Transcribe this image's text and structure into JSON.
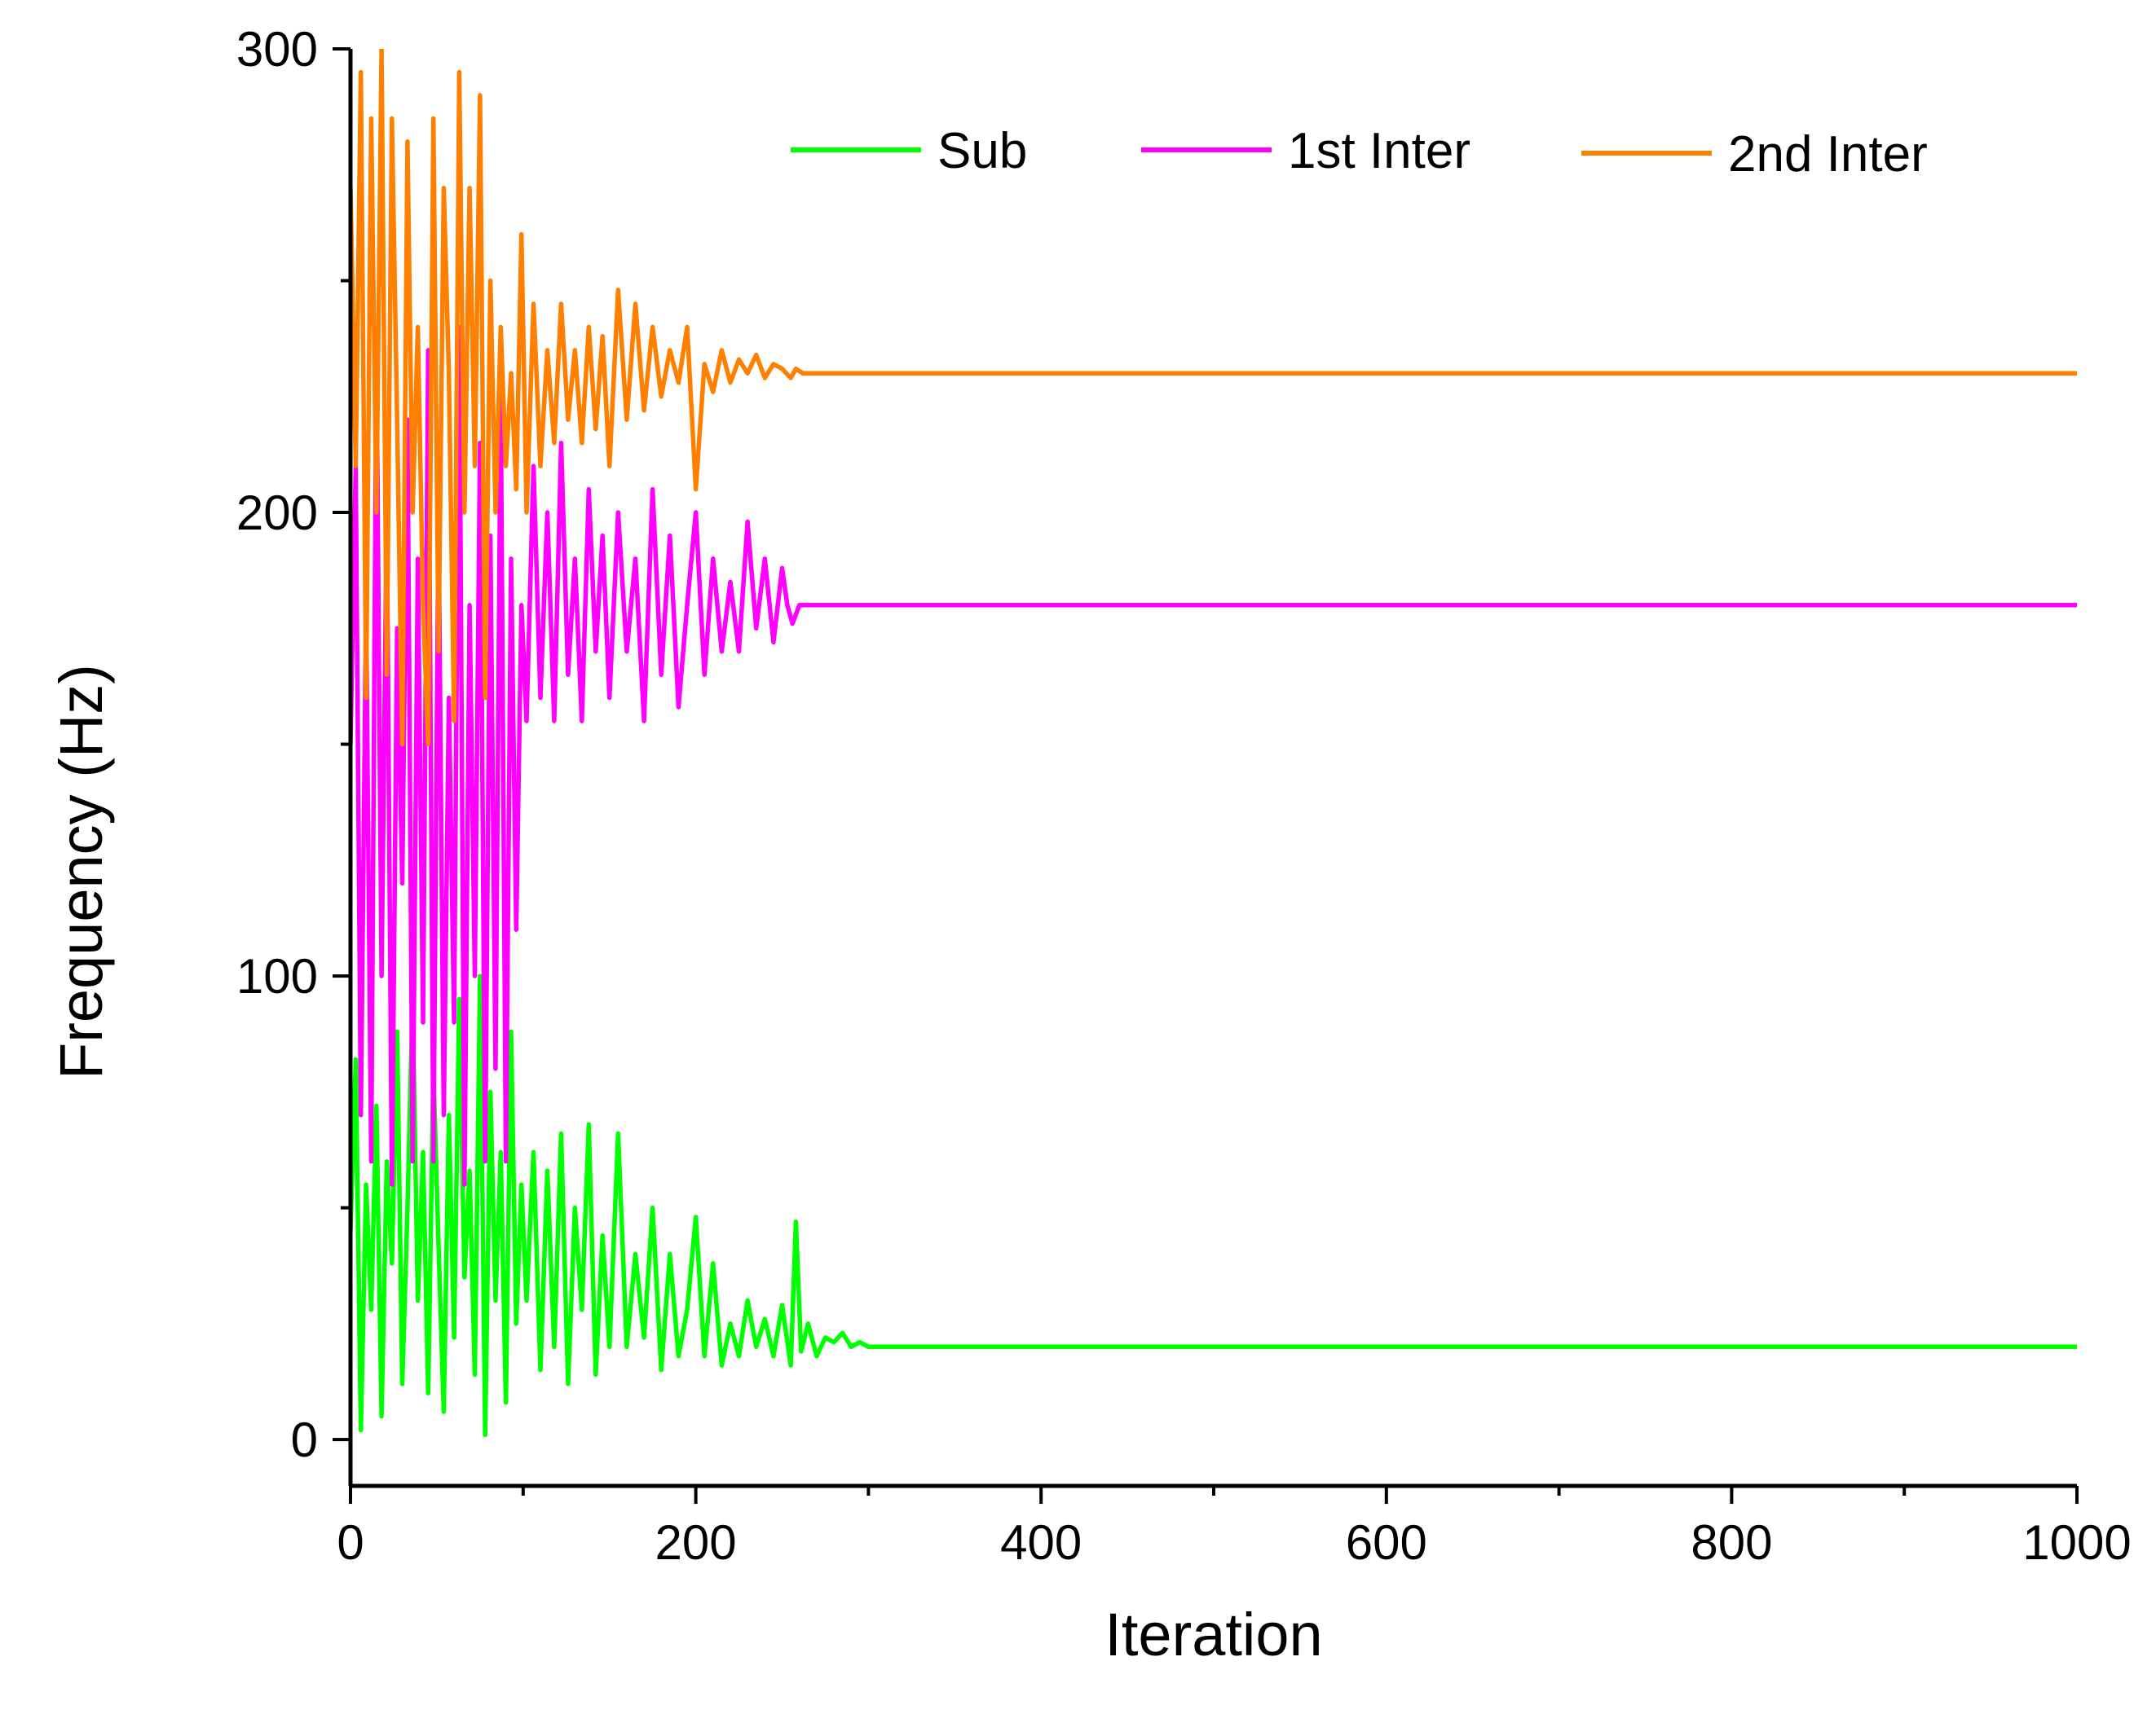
{
  "chart_data": {
    "type": "line",
    "xlabel": "Iteration",
    "ylabel": "Frequency (Hz)",
    "xlim": [
      0,
      1000
    ],
    "ylim": [
      -10,
      300
    ],
    "x_ticks": [
      0,
      200,
      400,
      600,
      800,
      1000
    ],
    "x_tick_labels": [
      "0",
      "200",
      "400",
      "600",
      "800",
      "1000"
    ],
    "y_ticks": [
      0,
      100,
      200,
      300
    ],
    "y_tick_labels": [
      "0",
      "100",
      "200",
      "300"
    ],
    "x_minor_ticks": [
      100,
      300,
      500,
      700,
      900
    ],
    "y_minor_ticks": [
      50,
      150,
      250
    ],
    "grid": false,
    "legend_position": "top",
    "series": [
      {
        "name": "Sub",
        "color": "#00ff00",
        "x": [
          0,
          3,
          6,
          9,
          12,
          15,
          18,
          21,
          24,
          27,
          30,
          33,
          36,
          39,
          42,
          45,
          48,
          51,
          54,
          57,
          60,
          63,
          66,
          69,
          72,
          75,
          78,
          81,
          84,
          87,
          90,
          93,
          96,
          99,
          102,
          106,
          110,
          114,
          118,
          122,
          126,
          130,
          134,
          138,
          142,
          146,
          150,
          155,
          160,
          165,
          170,
          175,
          180,
          185,
          190,
          195,
          200,
          205,
          210,
          215,
          220,
          225,
          230,
          235,
          240,
          245,
          250,
          255,
          258,
          261,
          265,
          270,
          275,
          280,
          285,
          290,
          295,
          300,
          1000
        ],
        "y": [
          45,
          82,
          2,
          55,
          28,
          72,
          5,
          60,
          38,
          88,
          12,
          50,
          95,
          30,
          62,
          10,
          80,
          42,
          6,
          70,
          22,
          95,
          35,
          58,
          14,
          100,
          1,
          75,
          30,
          62,
          8,
          88,
          25,
          55,
          30,
          62,
          15,
          58,
          20,
          66,
          12,
          50,
          28,
          68,
          14,
          44,
          20,
          66,
          20,
          40,
          22,
          50,
          15,
          40,
          18,
          28,
          48,
          18,
          38,
          16,
          25,
          18,
          30,
          20,
          26,
          18,
          29,
          16,
          47,
          19,
          25,
          18,
          22,
          21,
          23,
          20,
          21,
          20,
          20
        ]
      },
      {
        "name": "1st Inter",
        "color": "#ff00ff",
        "x": [
          0,
          3,
          6,
          9,
          12,
          15,
          18,
          21,
          24,
          27,
          30,
          33,
          36,
          39,
          42,
          45,
          48,
          51,
          54,
          57,
          60,
          63,
          66,
          69,
          72,
          75,
          78,
          81,
          84,
          87,
          90,
          93,
          96,
          99,
          102,
          106,
          110,
          114,
          118,
          122,
          126,
          130,
          134,
          138,
          142,
          146,
          150,
          155,
          160,
          165,
          170,
          175,
          180,
          185,
          190,
          195,
          200,
          205,
          210,
          215,
          220,
          225,
          230,
          235,
          240,
          245,
          250,
          253,
          256,
          260,
          1000
        ],
        "y": [
          150,
          210,
          70,
          180,
          60,
          235,
          100,
          200,
          55,
          175,
          120,
          220,
          60,
          190,
          90,
          235,
          60,
          200,
          70,
          160,
          90,
          240,
          55,
          180,
          100,
          215,
          60,
          195,
          80,
          225,
          60,
          190,
          110,
          180,
          155,
          210,
          160,
          200,
          155,
          215,
          165,
          190,
          155,
          205,
          170,
          195,
          160,
          200,
          170,
          190,
          155,
          205,
          165,
          195,
          158,
          180,
          200,
          165,
          190,
          170,
          185,
          170,
          198,
          175,
          190,
          172,
          188,
          180,
          176,
          180,
          180
        ]
      },
      {
        "name": "2nd Inter",
        "color": "#ff8000",
        "x": [
          0,
          3,
          6,
          9,
          12,
          15,
          18,
          21,
          24,
          27,
          30,
          33,
          36,
          39,
          42,
          45,
          48,
          51,
          54,
          57,
          60,
          63,
          66,
          69,
          72,
          75,
          78,
          81,
          84,
          87,
          90,
          93,
          96,
          99,
          102,
          106,
          110,
          114,
          118,
          122,
          126,
          130,
          134,
          138,
          142,
          146,
          150,
          155,
          160,
          165,
          170,
          175,
          180,
          185,
          190,
          195,
          200,
          205,
          210,
          215,
          220,
          225,
          230,
          235,
          240,
          245,
          250,
          255,
          258,
          262,
          1000
        ],
        "y": [
          270,
          210,
          295,
          160,
          285,
          200,
          300,
          165,
          285,
          220,
          150,
          280,
          200,
          240,
          180,
          150,
          285,
          170,
          270,
          230,
          155,
          295,
          200,
          270,
          210,
          290,
          160,
          250,
          200,
          240,
          210,
          230,
          205,
          260,
          200,
          245,
          210,
          235,
          215,
          245,
          220,
          235,
          215,
          240,
          218,
          238,
          210,
          248,
          220,
          245,
          222,
          240,
          225,
          235,
          228,
          240,
          205,
          232,
          226,
          235,
          228,
          233,
          230,
          234,
          229,
          232,
          231,
          229,
          231,
          230,
          230
        ]
      }
    ]
  }
}
